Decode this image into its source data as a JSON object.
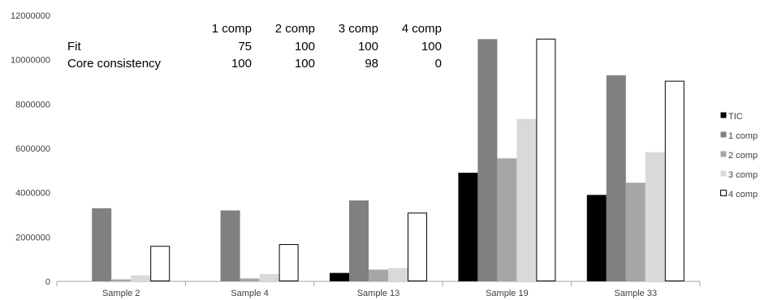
{
  "chart_data": {
    "type": "bar",
    "categories": [
      "Sample 2",
      "Sample 4",
      "Sample 13",
      "Sample 19",
      "Sample 33"
    ],
    "series": [
      {
        "name": "TIC",
        "color": "#000000",
        "values": [
          0,
          0,
          380000,
          4900000,
          3900000
        ]
      },
      {
        "name": "1 comp",
        "color": "#808080",
        "values": [
          3300000,
          3200000,
          3650000,
          10930000,
          9300000
        ]
      },
      {
        "name": "2 comp",
        "color": "#a6a6a6",
        "values": [
          90000,
          130000,
          530000,
          5550000,
          4450000
        ]
      },
      {
        "name": "3 comp",
        "color": "#d9d9d9",
        "values": [
          270000,
          330000,
          600000,
          7330000,
          5830000
        ]
      },
      {
        "name": "4 comp",
        "color": "#ffffff",
        "values": [
          1600000,
          1680000,
          3100000,
          10950000,
          9050000
        ]
      }
    ],
    "yticks": [
      "0",
      "2000000",
      "4000000",
      "6000000",
      "8000000",
      "10000000",
      "12000000"
    ],
    "ylim": [
      0,
      12000000
    ],
    "grid": false,
    "legend_position": "right",
    "title": "",
    "xlabel": "",
    "ylabel": ""
  },
  "table": {
    "headers": [
      "1 comp",
      "2 comp",
      "3 comp",
      "4 comp"
    ],
    "rows": [
      {
        "label": "Fit",
        "values": [
          "75",
          "100",
          "100",
          "100"
        ]
      },
      {
        "label": "Core consistency",
        "values": [
          "100",
          "100",
          "98",
          "0"
        ]
      }
    ]
  }
}
